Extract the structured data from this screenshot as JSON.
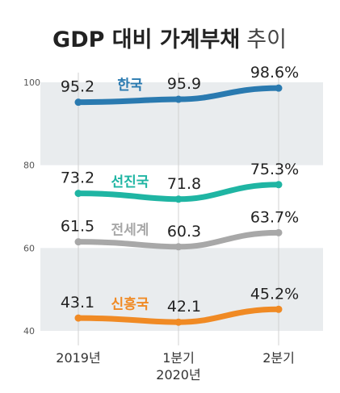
{
  "chart_data": {
    "type": "line",
    "title_main": "GDP 대비 가계부채",
    "title_suffix": "추이",
    "categories": [
      "2019년",
      "1분기",
      "2분기"
    ],
    "category_group_label": "2020년",
    "y_ticks": [
      "100",
      "80",
      "60",
      "40"
    ],
    "ylim": [
      40,
      100
    ],
    "series": [
      {
        "name": "한국",
        "values": [
          95.2,
          95.9,
          98.6
        ],
        "labels": [
          "95.2",
          "95.9",
          "98.6%"
        ],
        "color": "#2a7ab0"
      },
      {
        "name": "선진국",
        "values": [
          73.2,
          71.8,
          75.3
        ],
        "labels": [
          "73.2",
          "71.8",
          "75.3%"
        ],
        "color": "#1fb5a3"
      },
      {
        "name": "전세계",
        "values": [
          61.5,
          60.3,
          63.7
        ],
        "labels": [
          "61.5",
          "60.3",
          "63.7%"
        ],
        "color": "#a8a8a8"
      },
      {
        "name": "신흥국",
        "values": [
          43.1,
          42.1,
          45.2
        ],
        "labels": [
          "43.1",
          "42.1",
          "45.2%"
        ],
        "color": "#f08a24"
      }
    ],
    "band_color": "#e9ecee"
  }
}
